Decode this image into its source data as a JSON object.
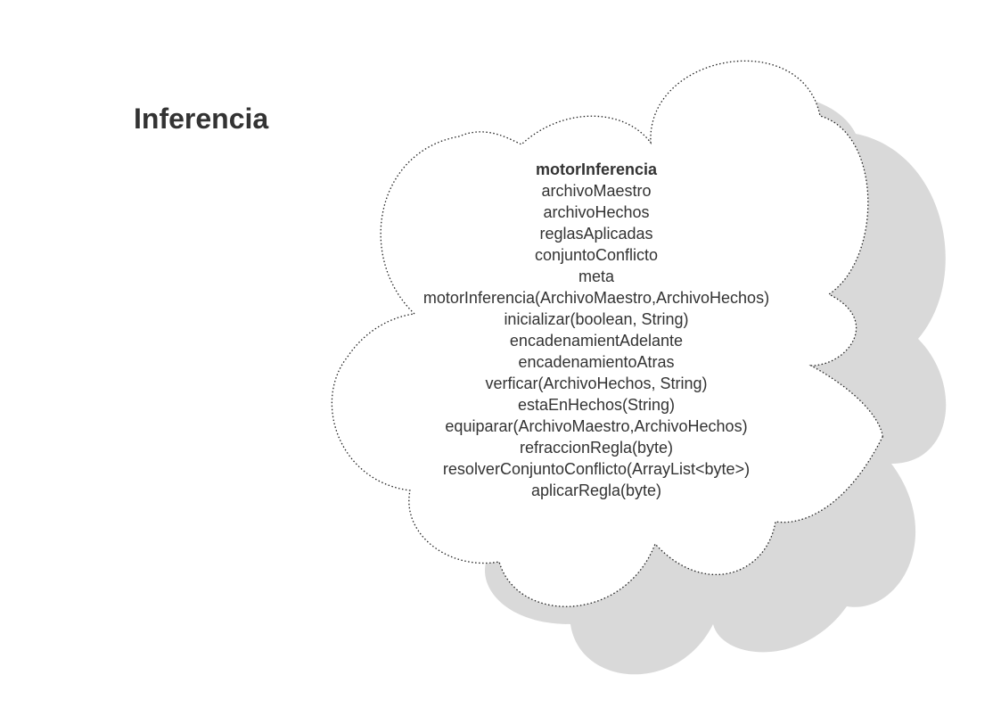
{
  "title": "Inferencia",
  "class": {
    "name": "motorInferencia",
    "attributes": [
      "archivoMaestro",
      "archivoHechos",
      "reglasAplicadas",
      "conjuntoConflicto",
      "meta"
    ],
    "methods": [
      "motorInferencia(ArchivoMaestro,ArchivoHechos)",
      "inicializar(boolean, String)",
      "encadenamientAdelante",
      "encadenamientoAtras",
      "verficar(ArchivoHechos, String)",
      "estaEnHechos(String)",
      "equiparar(ArchivoMaestro,ArchivoHechos)",
      "refraccionRegla(byte)",
      "resolverConjuntoConflicto(ArrayList<byte>)",
      "aplicarRegla(byte)"
    ]
  },
  "colors": {
    "shadow": "#d9d9d9",
    "cloud_fill": "#ffffff",
    "cloud_outline": "#222222",
    "text": "#333333"
  }
}
